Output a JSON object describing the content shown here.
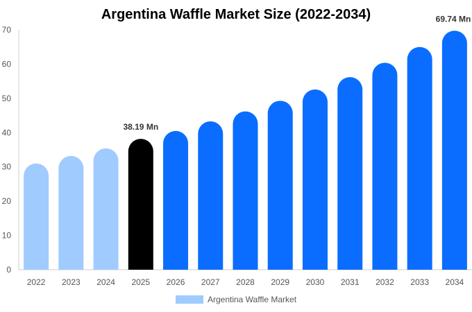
{
  "chart_data": {
    "type": "bar",
    "title": "Argentina Waffle Market Size (2022-2034)",
    "categories": [
      "2022",
      "2023",
      "2024",
      "2025",
      "2026",
      "2027",
      "2028",
      "2029",
      "2030",
      "2031",
      "2032",
      "2033",
      "2034"
    ],
    "series": [
      {
        "name": "Argentina Waffle Market",
        "values": [
          31.0,
          33.2,
          35.4,
          38.19,
          40.5,
          43.3,
          46.2,
          49.3,
          52.6,
          56.2,
          60.4,
          65.0,
          69.74
        ]
      }
    ],
    "ylim": [
      0,
      70
    ],
    "yticks": [
      0,
      10,
      20,
      30,
      40,
      50,
      60,
      70
    ],
    "data_labels": [
      {
        "category": "2025",
        "text": "38.19 Mn"
      },
      {
        "category": "2034",
        "text": "69.74 Mn"
      }
    ],
    "colors": {
      "historical": "#a0cbff",
      "current": "#000000",
      "forecast": "#0a6dff"
    },
    "color_groups": [
      "historical",
      "historical",
      "historical",
      "current",
      "forecast",
      "forecast",
      "forecast",
      "forecast",
      "forecast",
      "forecast",
      "forecast",
      "forecast",
      "forecast"
    ],
    "legend": {
      "label": "Argentina Waffle Market",
      "position": "bottom-center"
    },
    "grid": false
  }
}
